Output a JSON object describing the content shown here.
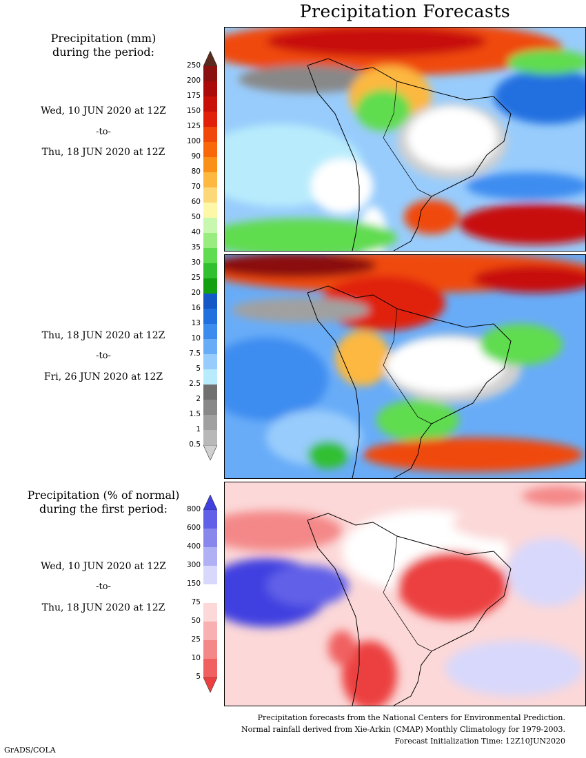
{
  "title": "Precipitation Forecasts",
  "panel1": {
    "header_line1": "Precipitation (mm)",
    "header_line2": "during the period:",
    "start": "Wed, 10 JUN 2020 at 12Z",
    "sep": "-to-",
    "end": "Thu, 18 JUN 2020 at 12Z"
  },
  "panel2": {
    "start": "Thu, 18 JUN 2020 at 12Z",
    "sep": "-to-",
    "end": "Fri, 26 JUN 2020 at 12Z"
  },
  "panel3": {
    "header_line1": "Precipitation (% of normal)",
    "header_line2": "during the first period:",
    "start": "Wed, 10 JUN 2020 at 12Z",
    "sep": "-to-",
    "end": "Thu, 18 JUN 2020 at 12Z"
  },
  "precip_scale": {
    "labels": [
      "250",
      "200",
      "175",
      "150",
      "125",
      "100",
      "90",
      "80",
      "70",
      "60",
      "50",
      "40",
      "35",
      "30",
      "25",
      "20",
      "16",
      "13",
      "10",
      "7.5",
      "5",
      "2.5",
      "2",
      "1.5",
      "1",
      "0.5"
    ],
    "colors": [
      "#5a2a1e",
      "#8b1010",
      "#aa0a0a",
      "#c81008",
      "#e02008",
      "#f04808",
      "#f86808",
      "#fb9018",
      "#fcb840",
      "#fcd878",
      "#fcf8a8",
      "#c8f8b0",
      "#98ec80",
      "#60dc50",
      "#30c030",
      "#10a010",
      "#1458c8",
      "#2070e0",
      "#3c8cf0",
      "#68acf8",
      "#98ccfc",
      "#b8ecfc",
      "#707070",
      "#888888",
      "#a0a0a0",
      "#b8b8b8",
      "#d0d0d0"
    ]
  },
  "anomaly_scale": {
    "labels": [
      "800",
      "600",
      "400",
      "300",
      "150",
      "75",
      "50",
      "25",
      "10",
      "5"
    ],
    "colors": [
      "#4040e0",
      "#6060e8",
      "#8888ec",
      "#b0b0f4",
      "#d8d8fc",
      "#ffffff",
      "#fcd8d8",
      "#f8b0b0",
      "#f48888",
      "#f06060",
      "#ec4040"
    ]
  },
  "footer": {
    "line1": "Precipitation forecasts from the National Centers for Environmental Prediction.",
    "line2": "Normal rainfall derived from Xie-Arkin (CMAP) Monthly Climatology for 1979-2003.",
    "line3": "Forecast Initialization Time: 12Z10JUN2020"
  },
  "credit": "GrADS/COLA"
}
